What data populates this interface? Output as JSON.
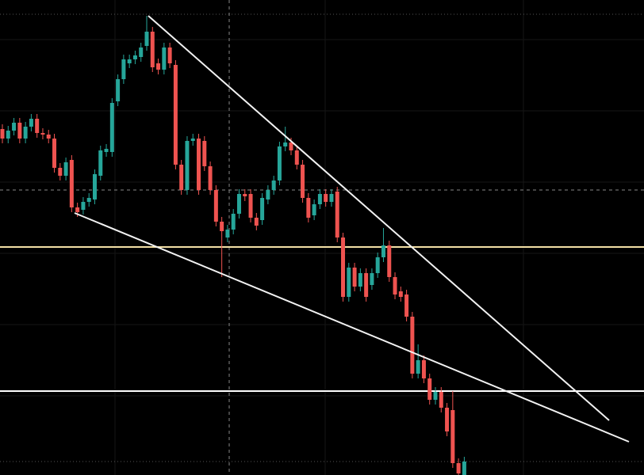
{
  "chart_data": {
    "type": "candlestick",
    "open": [
      437,
      425,
      435,
      445,
      425,
      440,
      450,
      432,
      430,
      425,
      388,
      378,
      398,
      338,
      335,
      345,
      348,
      378,
      408,
      408,
      472,
      500,
      520,
      525,
      528,
      542,
      560,
      520,
      512,
      540,
      518,
      392,
      360,
      422,
      425,
      422,
      390,
      360,
      320,
      300,
      310,
      330,
      355,
      355,
      325,
      322,
      348,
      360,
      372,
      415,
      420,
      410,
      392,
      350,
      328,
      342,
      355,
      345,
      358,
      300,
      225,
      262,
      238,
      255,
      240,
      255,
      275,
      290,
      250,
      232,
      228,
      200,
      128,
      145,
      122,
      95,
      105,
      85,
      82,
      15,
      0
    ],
    "high": [
      443,
      441,
      451,
      451,
      446,
      456,
      456,
      438,
      436,
      431,
      394,
      401,
      404,
      344,
      351,
      356,
      386,
      416,
      418,
      476,
      506,
      531,
      531,
      536,
      546,
      580,
      566,
      526,
      546,
      546,
      524,
      398,
      428,
      431,
      431,
      428,
      396,
      366,
      326,
      316,
      336,
      361,
      361,
      361,
      331,
      356,
      366,
      378,
      421,
      440,
      426,
      416,
      398,
      356,
      348,
      361,
      361,
      361,
      364,
      306,
      268,
      268,
      261,
      261,
      261,
      281,
      312,
      296,
      256,
      238,
      234,
      206,
      165,
      151,
      128,
      111,
      111,
      91,
      106,
      21,
      23
    ],
    "low": [
      419,
      419,
      429,
      419,
      419,
      434,
      426,
      424,
      419,
      382,
      372,
      372,
      332,
      326,
      329,
      339,
      342,
      372,
      402,
      402,
      466,
      494,
      514,
      519,
      522,
      536,
      509,
      506,
      506,
      514,
      386,
      354,
      354,
      416,
      354,
      384,
      354,
      314,
      250,
      294,
      304,
      324,
      346,
      319,
      309,
      316,
      342,
      354,
      366,
      409,
      404,
      386,
      344,
      319,
      322,
      336,
      339,
      339,
      294,
      219,
      219,
      232,
      232,
      219,
      234,
      249,
      269,
      244,
      222,
      219,
      194,
      122,
      122,
      116,
      89,
      89,
      79,
      49,
      9,
      0,
      0
    ],
    "close": [
      425,
      435,
      445,
      425,
      440,
      450,
      432,
      430,
      425,
      388,
      378,
      395,
      338,
      332,
      345,
      350,
      380,
      410,
      412,
      470,
      500,
      525,
      525,
      530,
      540,
      560,
      515,
      512,
      540,
      520,
      392,
      360,
      422,
      425,
      360,
      390,
      360,
      320,
      308,
      310,
      330,
      355,
      352,
      325,
      315,
      350,
      360,
      372,
      415,
      420,
      410,
      392,
      350,
      325,
      342,
      355,
      345,
      355,
      300,
      225,
      262,
      238,
      255,
      225,
      255,
      275,
      290,
      250,
      228,
      225,
      200,
      128,
      145,
      122,
      95,
      105,
      85,
      55,
      15,
      2,
      17
    ],
    "ylim": [
      0,
      600
    ],
    "up_color": "#26a69a",
    "down_color": "#ef5350",
    "levels": [
      {
        "value": 288,
        "color": "#f3e0a6"
      },
      {
        "value": 106,
        "color": "#ffffff"
      }
    ]
  }
}
